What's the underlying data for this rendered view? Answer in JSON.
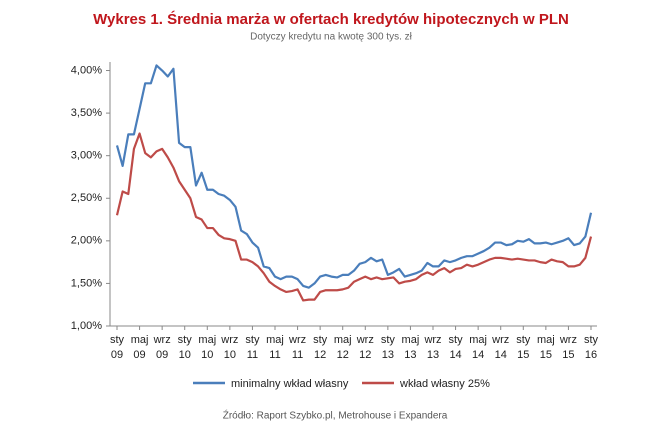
{
  "chart_data": {
    "type": "line",
    "title": "Wykres 1. Średnia marża w ofertach kredytów hipotecznych w PLN",
    "subtitle": "Dotyczy kredytu na kwotę 300 tys. zł",
    "source": "Źródło: Raport Szybko.pl, Metrohouse i Expandera",
    "categories": [
      "sty 09",
      null,
      null,
      null,
      "maj 09",
      null,
      null,
      null,
      "wrz 09",
      null,
      null,
      null,
      "sty 10",
      null,
      null,
      null,
      "maj 10",
      null,
      null,
      null,
      "wrz 10",
      null,
      null,
      null,
      "sty 11",
      null,
      null,
      null,
      "maj 11",
      null,
      null,
      null,
      "wrz 11",
      null,
      null,
      null,
      "sty 12",
      null,
      null,
      null,
      "maj 12",
      null,
      null,
      null,
      "wrz 12",
      null,
      null,
      null,
      "sty 13",
      null,
      null,
      null,
      "maj 13",
      null,
      null,
      null,
      "wrz 13",
      null,
      null,
      null,
      "sty 14",
      null,
      null,
      null,
      "maj 14",
      null,
      null,
      null,
      "wrz 14",
      null,
      null,
      null,
      "sty 15",
      null,
      null,
      null,
      "maj 15",
      null,
      null,
      null,
      "wrz 15",
      null,
      null,
      null,
      "sty 16"
    ],
    "series": [
      {
        "name": "minimalny wkład własny",
        "color": "#4a7ebb",
        "values": [
          3.12,
          2.88,
          3.25,
          3.25,
          3.55,
          3.85,
          3.85,
          4.06,
          4.0,
          3.93,
          4.02,
          3.15,
          3.1,
          3.1,
          2.65,
          2.8,
          2.6,
          2.6,
          2.55,
          2.53,
          2.48,
          2.4,
          2.12,
          2.08,
          1.98,
          1.92,
          1.7,
          1.68,
          1.58,
          1.55,
          1.58,
          1.58,
          1.55,
          1.47,
          1.45,
          1.5,
          1.58,
          1.6,
          1.58,
          1.57,
          1.6,
          1.6,
          1.65,
          1.73,
          1.75,
          1.8,
          1.76,
          1.78,
          1.6,
          1.63,
          1.67,
          1.58,
          1.6,
          1.62,
          1.65,
          1.74,
          1.7,
          1.7,
          1.77,
          1.75,
          1.77,
          1.8,
          1.82,
          1.82,
          1.85,
          1.88,
          1.92,
          1.98,
          1.98,
          1.95,
          1.96,
          2.0,
          1.99,
          2.02,
          1.97,
          1.97,
          1.98,
          1.96,
          1.98,
          2.0,
          2.03,
          1.95,
          1.97,
          2.05,
          2.33
        ]
      },
      {
        "name": "wkład własny 25%",
        "color": "#be4b48",
        "values": [
          2.3,
          2.58,
          2.55,
          3.08,
          3.26,
          3.03,
          2.98,
          3.05,
          3.08,
          2.98,
          2.86,
          2.7,
          2.6,
          2.5,
          2.28,
          2.25,
          2.15,
          2.15,
          2.07,
          2.03,
          2.02,
          2.0,
          1.78,
          1.78,
          1.75,
          1.7,
          1.62,
          1.52,
          1.47,
          1.43,
          1.4,
          1.41,
          1.43,
          1.3,
          1.31,
          1.31,
          1.4,
          1.42,
          1.42,
          1.42,
          1.43,
          1.45,
          1.52,
          1.55,
          1.58,
          1.55,
          1.57,
          1.55,
          1.56,
          1.57,
          1.5,
          1.52,
          1.53,
          1.55,
          1.6,
          1.63,
          1.6,
          1.65,
          1.68,
          1.63,
          1.67,
          1.68,
          1.72,
          1.7,
          1.72,
          1.75,
          1.78,
          1.8,
          1.8,
          1.79,
          1.78,
          1.79,
          1.78,
          1.77,
          1.77,
          1.75,
          1.74,
          1.78,
          1.76,
          1.75,
          1.7,
          1.7,
          1.72,
          1.8,
          2.05
        ]
      }
    ],
    "ylim": [
      1,
      4.1
    ],
    "yticks": [
      {
        "value": 1,
        "label": "1,00%"
      },
      {
        "value": 1.5,
        "label": "1,50%"
      },
      {
        "value": 2,
        "label": "2,00%"
      },
      {
        "value": 2.5,
        "label": "2,50%"
      },
      {
        "value": 3,
        "label": "3,00%"
      },
      {
        "value": 3.5,
        "label": "3,50%"
      },
      {
        "value": 4,
        "label": "4,00%"
      }
    ],
    "grid": false,
    "legend": "bottom"
  }
}
